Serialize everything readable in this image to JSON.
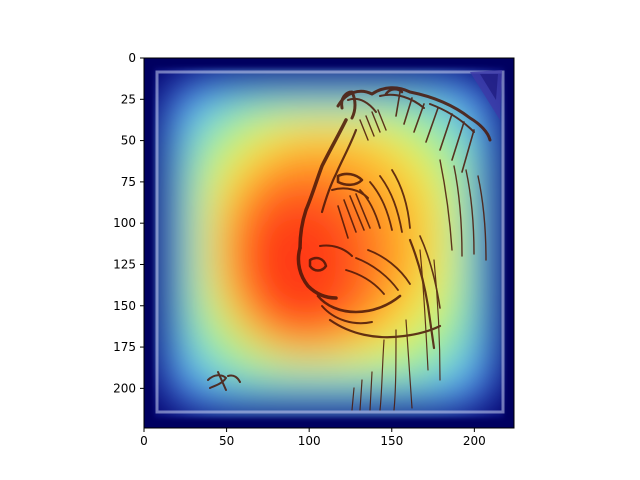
{
  "chart_data": {
    "type": "heatmap",
    "title": "",
    "xlabel": "",
    "ylabel": "",
    "image_size": [
      224,
      224
    ],
    "xlim": [
      0,
      224
    ],
    "ylim": [
      224,
      0
    ],
    "y_inverted": true,
    "x_ticks": [
      0,
      50,
      100,
      150,
      200
    ],
    "y_ticks": [
      0,
      25,
      50,
      75,
      100,
      125,
      150,
      175,
      200
    ],
    "colormap": "jet",
    "overlay": "heatmap over an ink sketch of a horse's head",
    "heat_peak": [
      100,
      135
    ],
    "grid": false,
    "legend": "none"
  },
  "colors": {
    "background": "#ffffff",
    "axes": "#000000",
    "jet_low": "#00008f",
    "jet_mid": "#7fff7f",
    "jet_high": "#ff3000",
    "sketch_ink": "#4a1608"
  }
}
